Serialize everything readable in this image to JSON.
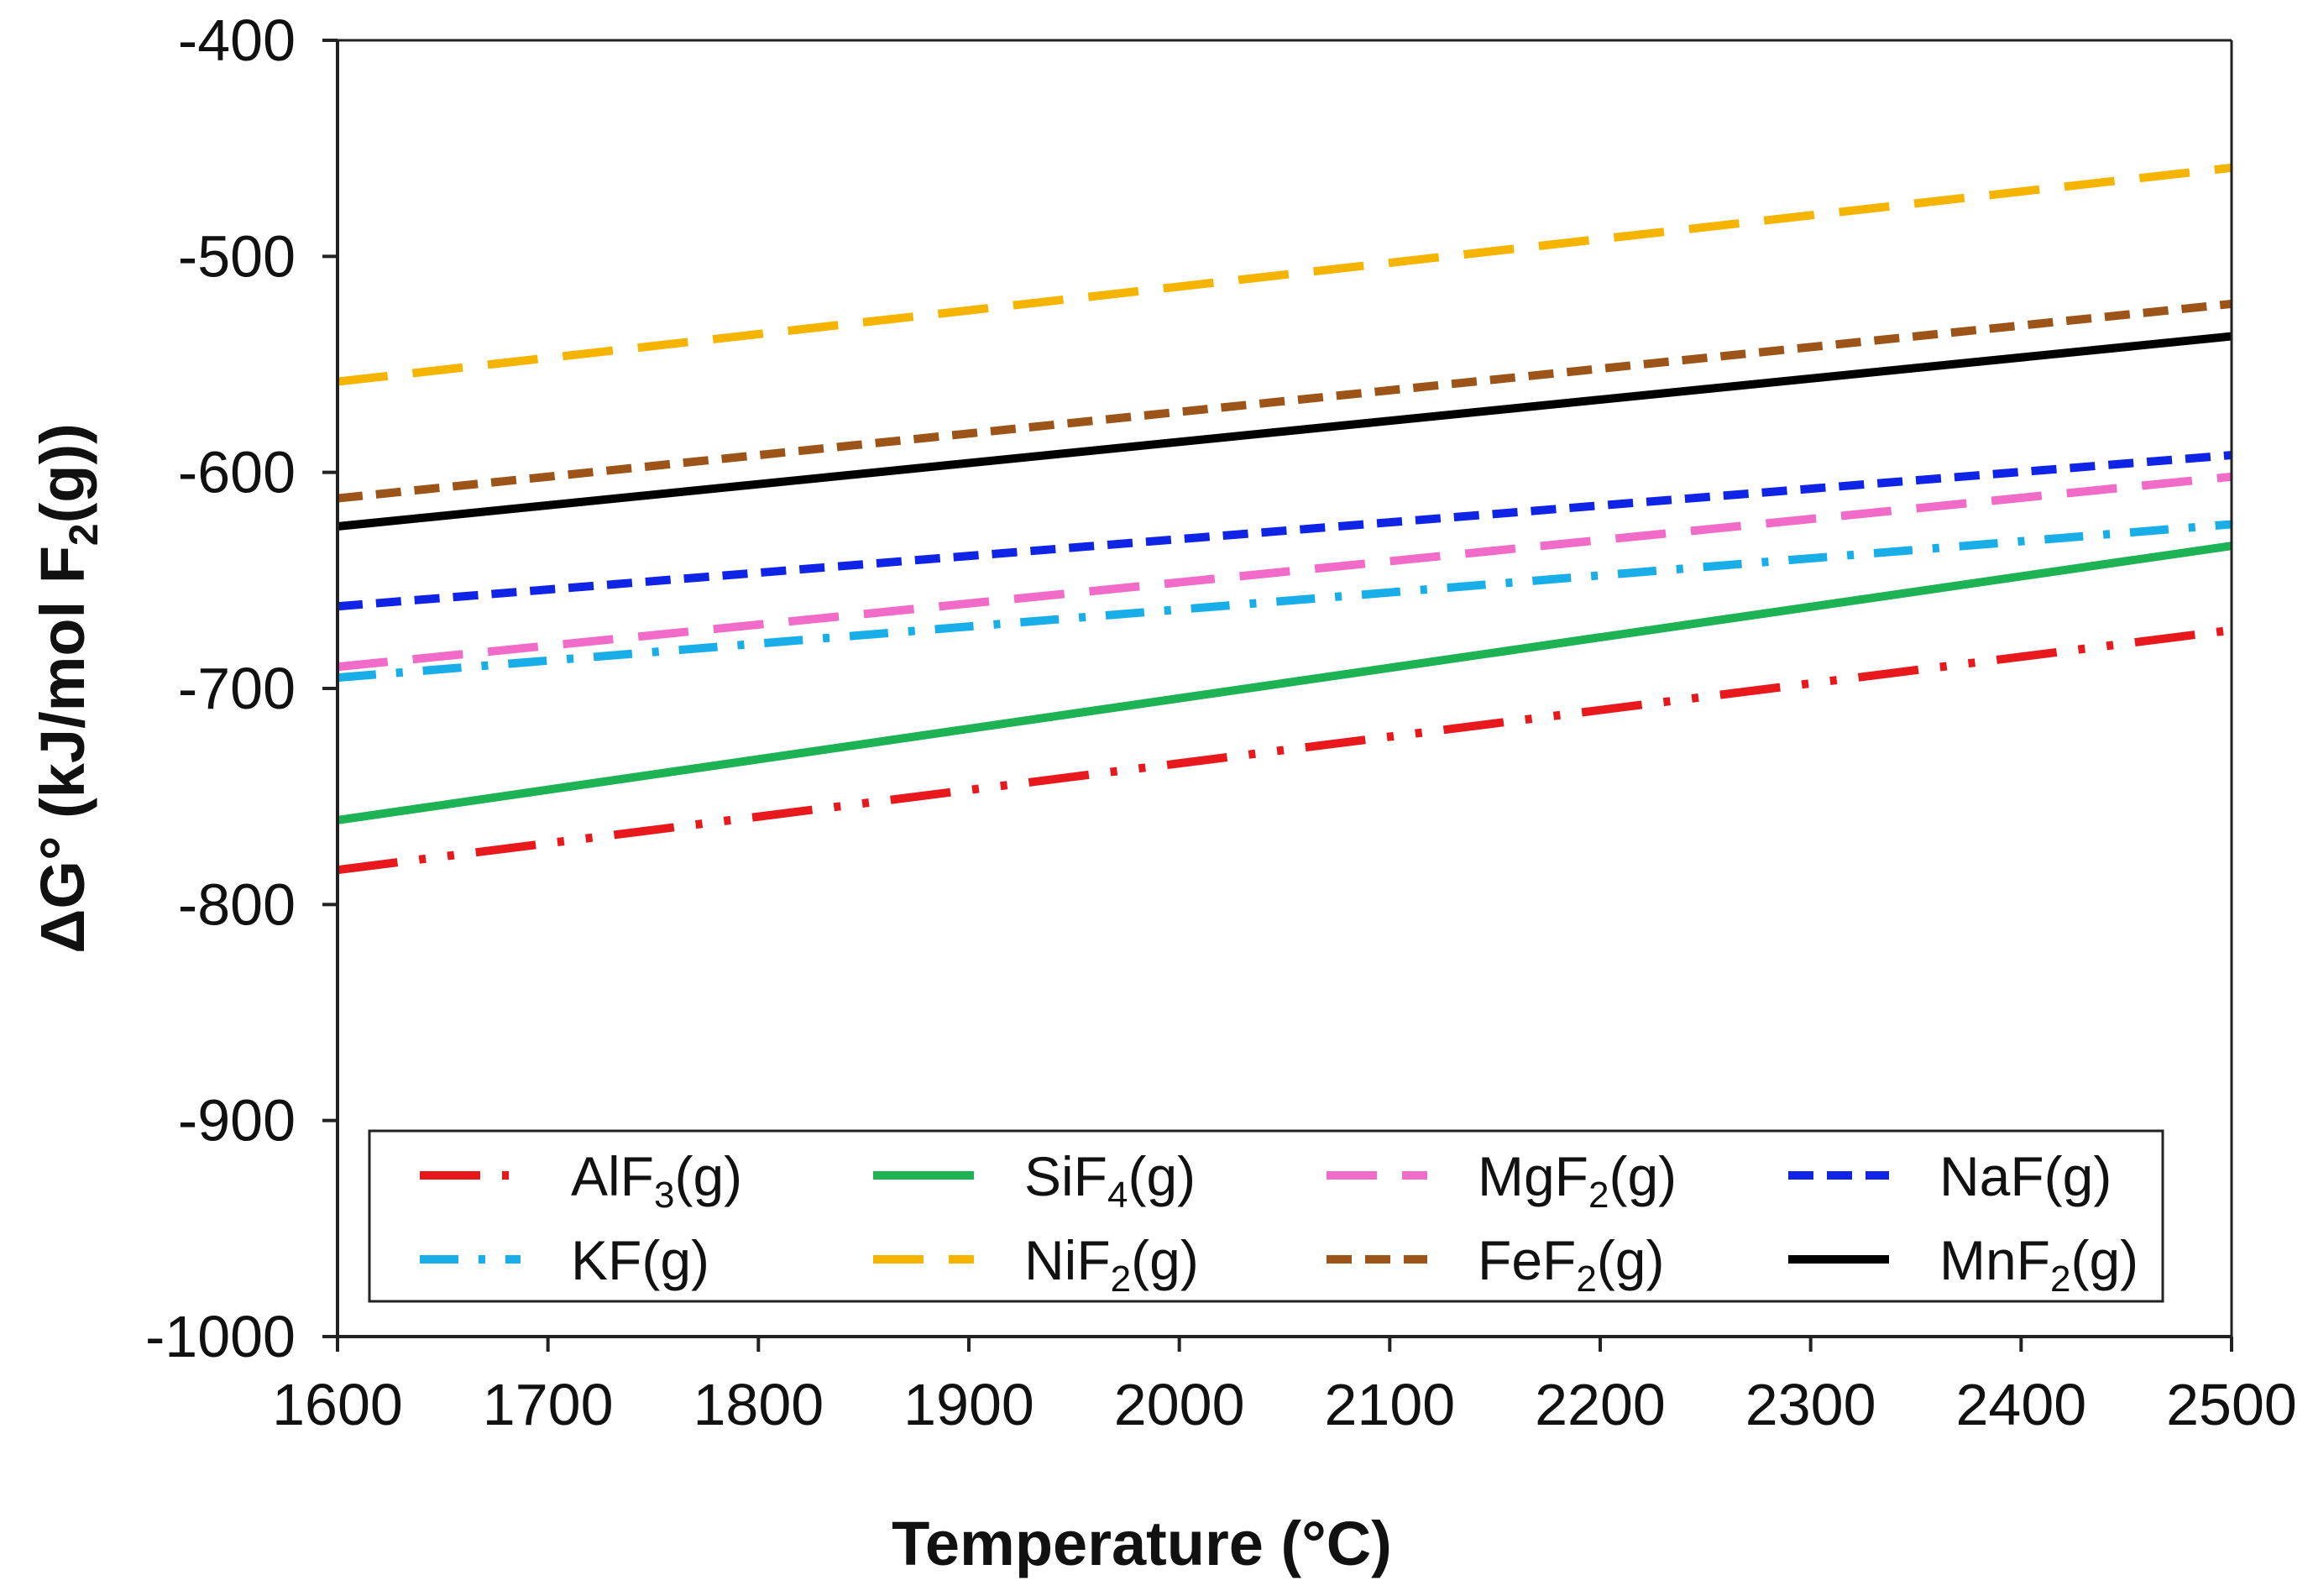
{
  "chart_data": {
    "type": "line",
    "title": "",
    "xlabel": "Temperature (°C)",
    "ylabel": {
      "pre": "ΔG° (kJ/mol F",
      "sub": "2",
      "post": "(g))"
    },
    "xlim": [
      1600,
      2500
    ],
    "ylim": [
      -1000,
      -400
    ],
    "x_ticks": [
      "1600",
      "1700",
      "1800",
      "1900",
      "2000",
      "2100",
      "2200",
      "2300",
      "2400",
      "2500"
    ],
    "y_ticks": [
      "-400",
      "-500",
      "-600",
      "-700",
      "-800",
      "-900",
      "-1000"
    ],
    "grid": false,
    "legend": {
      "position": "bottom",
      "columns": 4
    },
    "x": [
      1600,
      2500
    ],
    "series": [
      {
        "name": {
          "pre": "AlF",
          "sub": "3",
          "post": "(g)"
        },
        "color": "#e8191c",
        "dash": "long-dash-dot-dot",
        "values": [
          -784,
          -673
        ]
      },
      {
        "name": {
          "pre": "SiF",
          "sub": "4",
          "post": "(g)"
        },
        "color": "#1db254",
        "dash": "solid",
        "values": [
          -761,
          -634
        ]
      },
      {
        "name": {
          "pre": "MgF",
          "sub": "2",
          "post": "(g)"
        },
        "color": "#f06cc8",
        "dash": "long-dash",
        "values": [
          -690,
          -602
        ]
      },
      {
        "name": {
          "pre": "NaF(g)",
          "sub": "",
          "post": ""
        },
        "color": "#1024e6",
        "dash": "short-dash",
        "values": [
          -662,
          -592
        ]
      },
      {
        "name": {
          "pre": "KF(g)",
          "sub": "",
          "post": ""
        },
        "color": "#1aaee8",
        "dash": "dash-dot",
        "values": [
          -695,
          -624
        ]
      },
      {
        "name": {
          "pre": "NiF",
          "sub": "2",
          "post": "(g)"
        },
        "color": "#f5b400",
        "dash": "long-dash",
        "values": [
          -558,
          -459
        ]
      },
      {
        "name": {
          "pre": "FeF",
          "sub": "2",
          "post": "(g)"
        },
        "color": "#9c5418",
        "dash": "short-dash",
        "values": [
          -612,
          -522
        ]
      },
      {
        "name": {
          "pre": "MnF",
          "sub": "2",
          "post": "(g)"
        },
        "color": "#000000",
        "dash": "solid",
        "values": [
          -625,
          -537
        ]
      }
    ]
  }
}
